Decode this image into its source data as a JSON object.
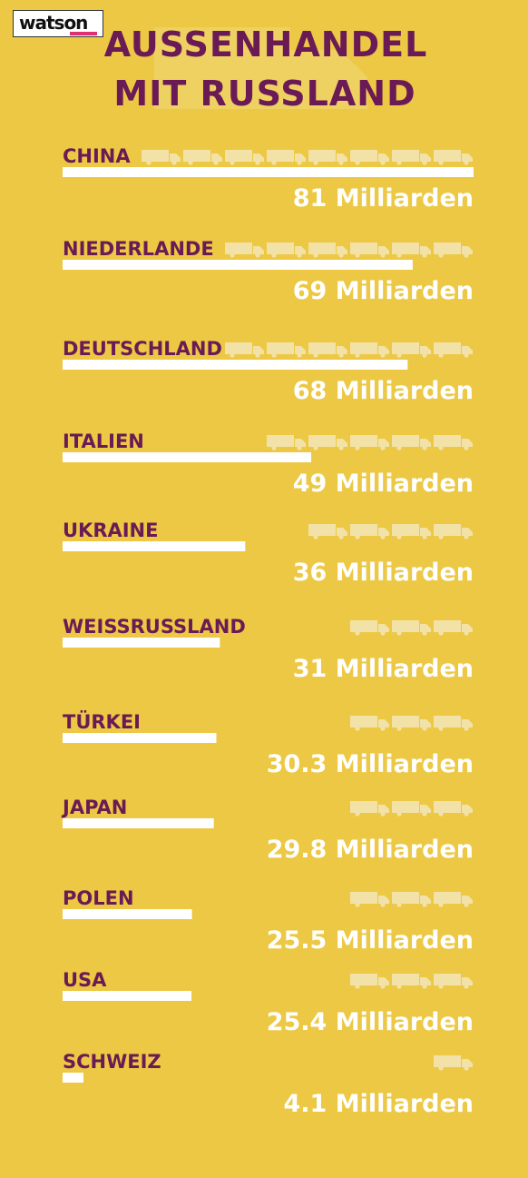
{
  "brand": {
    "logo_text": "watson"
  },
  "title_line1": "AUSSENHANDEL",
  "title_line2": "MIT RUSSLAND",
  "colors": {
    "background": "#ecc844",
    "title": "#6a1a55",
    "bar": "#ffffff",
    "truck": "#f3e2a8",
    "value_text": "#ffffff",
    "logo_accent": "#e0306f"
  },
  "icons": [
    "truck-icon"
  ],
  "chart_data": {
    "type": "bar",
    "orientation": "horizontal",
    "title": "AUSSENHANDEL MIT RUSSLAND",
    "categories": [
      "CHINA",
      "NIEDERLANDE",
      "DEUTSCHLAND",
      "ITALIEN",
      "UKRAINE",
      "WEISSRUSSLAND",
      "TÜRKEI",
      "JAPAN",
      "POLEN",
      "USA",
      "SCHWEIZ"
    ],
    "values": [
      81,
      69,
      68,
      49,
      36,
      31,
      30.3,
      29.8,
      25.5,
      25.4,
      4.1
    ],
    "value_labels": [
      "81 Milliarden",
      "69 Milliarden",
      "68 Milliarden",
      "49 Milliarden",
      "36 Milliarden",
      "31 Milliarden",
      "30.3 Milliarden",
      "29.8 Milliarden",
      "25.5 Milliarden",
      "25.4 Milliarden",
      "4.1 Milliarden"
    ],
    "trucks": [
      8,
      6,
      6,
      5,
      4,
      3,
      3,
      3,
      3,
      3,
      1
    ],
    "xlim": [
      0,
      81
    ],
    "grid": false,
    "legend": "none"
  }
}
